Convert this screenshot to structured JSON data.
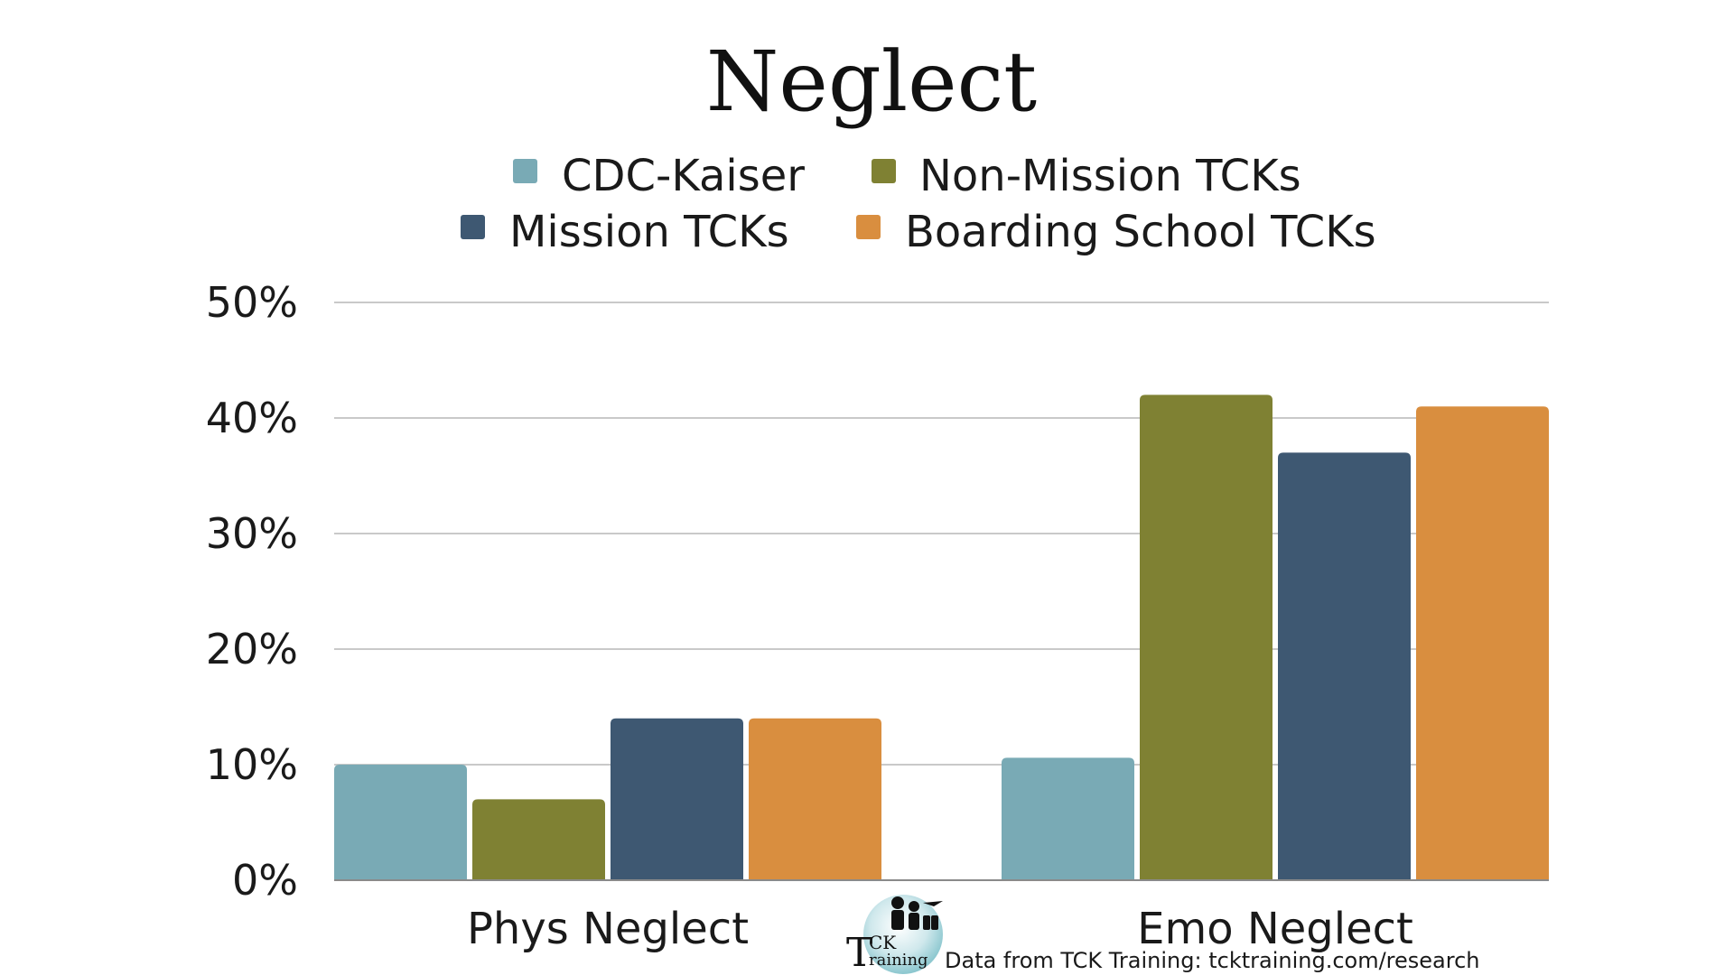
{
  "chart_data": {
    "type": "bar",
    "title": "Neglect",
    "categories": [
      "Phys Neglect",
      "Emo Neglect"
    ],
    "series": [
      {
        "name": "CDC-Kaiser",
        "color": "#79AAB5",
        "values": [
          10,
          10.6
        ]
      },
      {
        "name": "Non-Mission TCKs",
        "color": "#7F8133",
        "values": [
          7,
          42
        ]
      },
      {
        "name": "Mission TCKs",
        "color": "#3E5872",
        "values": [
          14,
          37
        ]
      },
      {
        "name": "Boarding School TCKs",
        "color": "#D98E3F",
        "values": [
          14,
          41
        ]
      }
    ],
    "ylim": [
      0,
      50
    ],
    "yticks": [
      0,
      10,
      20,
      30,
      40,
      50
    ],
    "ytick_suffix": "%",
    "legend_placement": "top",
    "grid": true
  },
  "source_note": "Data from TCK Training: tcktraining.com/research",
  "logo": {
    "text": "TCK Training",
    "name": "tck-training-logo"
  }
}
